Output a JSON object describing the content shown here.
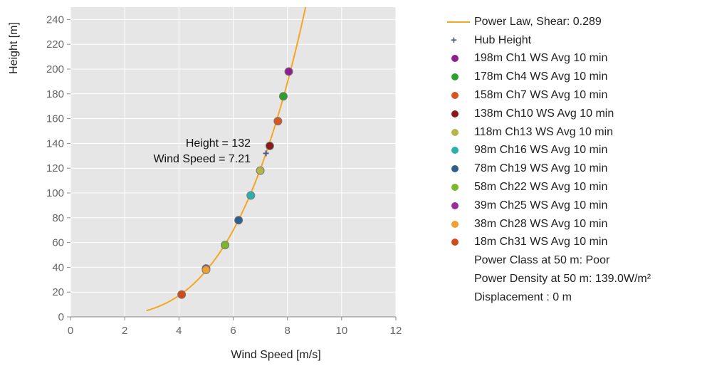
{
  "chart_data": {
    "type": "line",
    "title": "",
    "xlabel": "Wind Speed [m/s]",
    "ylabel": "Height [m]",
    "xlim": [
      0,
      12
    ],
    "ylim": [
      0,
      250
    ],
    "xticks": [
      "0",
      "2",
      "4",
      "6",
      "8",
      "10",
      "12"
    ],
    "yticks": [
      "0",
      "20",
      "40",
      "60",
      "80",
      "100",
      "120",
      "140",
      "160",
      "180",
      "200",
      "220",
      "240"
    ],
    "grid": true,
    "legend_position": "right",
    "curve": {
      "name": "Power Law, Shear: 0.289",
      "color": "#f5a623",
      "shear": 0.289,
      "ref_height": 132,
      "ref_speed": 7.21,
      "y_range": [
        5,
        250
      ]
    },
    "hub_height": {
      "name": "Hub Height",
      "x": 7.21,
      "y": 132,
      "color": "#4a5a8a"
    },
    "annotation": {
      "line1": "Height = 132",
      "line2": "Wind Speed = 7.21"
    },
    "series": [
      {
        "name": "198m Ch1 WS Avg 10 min",
        "x": 8.05,
        "y": 198,
        "color": "#8e1f8e"
      },
      {
        "name": "178m Ch4 WS Avg 10 min",
        "x": 7.85,
        "y": 178,
        "color": "#2ca02c"
      },
      {
        "name": "158m Ch7 WS Avg 10 min",
        "x": 7.65,
        "y": 158,
        "color": "#d9541e"
      },
      {
        "name": "138m Ch10 WS Avg 10 min",
        "x": 7.35,
        "y": 138,
        "color": "#8b1a1a"
      },
      {
        "name": "118m Ch13 WS Avg 10 min",
        "x": 7.0,
        "y": 118,
        "color": "#b5b54a"
      },
      {
        "name": "98m Ch16 WS Avg 10 min",
        "x": 6.65,
        "y": 98,
        "color": "#2ab0ad"
      },
      {
        "name": "78m Ch19 WS Avg 10 min",
        "x": 6.2,
        "y": 78,
        "color": "#2f5f8a"
      },
      {
        "name": "58m Ch22 WS Avg 10 min",
        "x": 5.7,
        "y": 58,
        "color": "#7ab82a"
      },
      {
        "name": "39m Ch25 WS Avg 10 min",
        "x": 5.0,
        "y": 39,
        "color": "#9b2d9b"
      },
      {
        "name": "38m Ch28 WS Avg 10 min",
        "x": 5.0,
        "y": 38,
        "color": "#f0a030"
      },
      {
        "name": "18m Ch31 WS Avg 10 min",
        "x": 4.1,
        "y": 18,
        "color": "#d24a1a"
      }
    ],
    "notes": [
      "Power Class at 50 m: Poor",
      "Power Density at 50 m: 139.0W/m²",
      "Displacement : 0 m"
    ]
  }
}
